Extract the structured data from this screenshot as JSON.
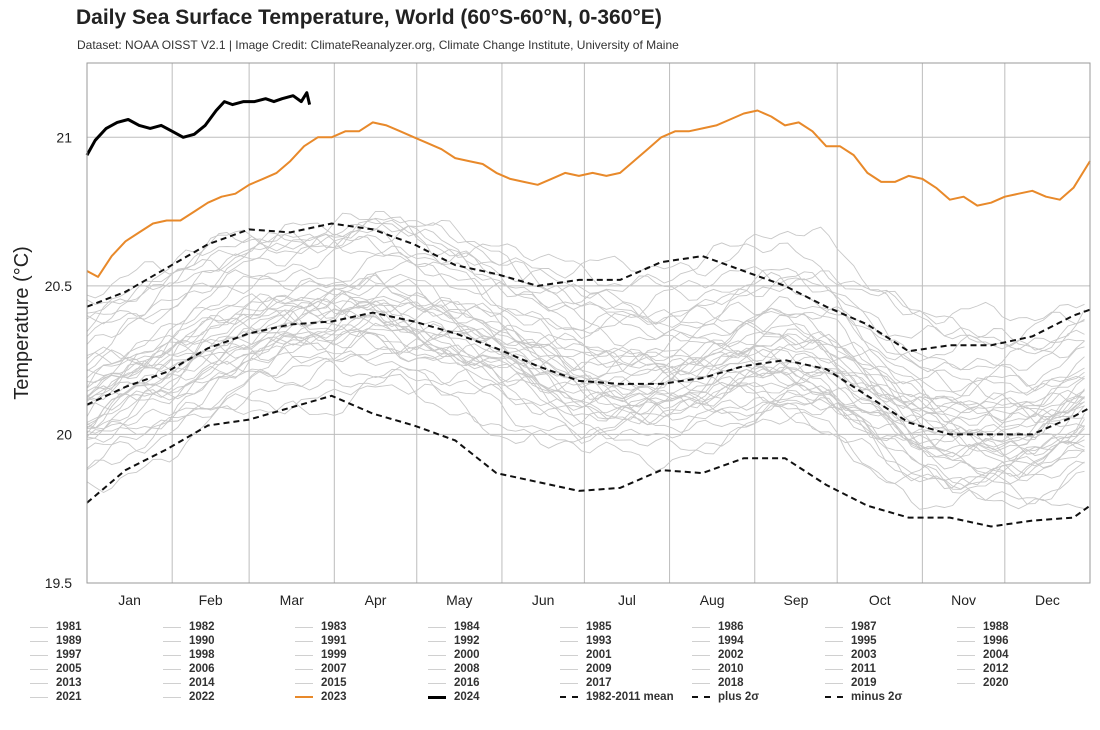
{
  "title": "Daily Sea Surface Temperature, World (60°S-60°N, 0-360°E)",
  "subtitle": "Dataset: NOAA OISST V2.1 | Image Credit: ClimateReanalyzer.org, Climate Change Institute, University of Maine",
  "colors": {
    "past_years": "#c8c8c8",
    "year_2023": "#e8892a",
    "year_2024": "#000000",
    "climatology": "#111111",
    "grid": "#bdbdbd"
  },
  "chart_data": {
    "type": "line",
    "title": "Daily Sea Surface Temperature, World (60°S-60°N, 0-360°E)",
    "xlabel": "",
    "ylabel": "Temperature (°C)",
    "x_unit": "day of year",
    "xlim": [
      1,
      366
    ],
    "ylim": [
      19.5,
      21.25
    ],
    "yticks": [
      19.5,
      20,
      20.5,
      21
    ],
    "ytick_labels": [
      "19.5",
      "20",
      "20.5",
      "21"
    ],
    "months": [
      "Jan",
      "Feb",
      "Mar",
      "Apr",
      "May",
      "Jun",
      "Jul",
      "Aug",
      "Sep",
      "Oct",
      "Nov",
      "Dec"
    ],
    "grid": true,
    "legend_position": "bottom",
    "highlight_series": [
      {
        "name": "2024",
        "style": "solid-thick-black",
        "x": [
          1,
          4,
          8,
          12,
          16,
          20,
          24,
          28,
          32,
          36,
          40,
          44,
          48,
          51,
          54,
          58,
          62,
          66,
          69,
          72,
          76,
          79,
          81,
          82
        ],
        "y": [
          20.94,
          20.99,
          21.03,
          21.05,
          21.06,
          21.04,
          21.03,
          21.04,
          21.02,
          21.0,
          21.01,
          21.04,
          21.09,
          21.12,
          21.11,
          21.12,
          21.12,
          21.13,
          21.12,
          21.13,
          21.14,
          21.12,
          21.15,
          21.11
        ]
      },
      {
        "name": "2023",
        "style": "solid-orange",
        "x": [
          1,
          5,
          10,
          15,
          20,
          25,
          30,
          35,
          40,
          45,
          50,
          55,
          60,
          65,
          70,
          75,
          80,
          85,
          90,
          95,
          100,
          105,
          110,
          115,
          120,
          125,
          130,
          135,
          140,
          145,
          150,
          155,
          160,
          165,
          170,
          175,
          180,
          185,
          190,
          195,
          200,
          205,
          210,
          215,
          220,
          225,
          230,
          235,
          240,
          245,
          250,
          255,
          260,
          265,
          270,
          275,
          280,
          285,
          290,
          295,
          300,
          305,
          310,
          315,
          320,
          325,
          330,
          335,
          340,
          345,
          350,
          355,
          360,
          366
        ],
        "y": [
          20.55,
          20.53,
          20.6,
          20.65,
          20.68,
          20.71,
          20.72,
          20.72,
          20.75,
          20.78,
          20.8,
          20.81,
          20.84,
          20.86,
          20.88,
          20.92,
          20.97,
          21.0,
          21.0,
          21.02,
          21.02,
          21.05,
          21.04,
          21.02,
          21.0,
          20.98,
          20.96,
          20.93,
          20.92,
          20.91,
          20.88,
          20.86,
          20.85,
          20.84,
          20.86,
          20.88,
          20.87,
          20.88,
          20.87,
          20.88,
          20.92,
          20.96,
          21.0,
          21.02,
          21.02,
          21.03,
          21.04,
          21.06,
          21.08,
          21.09,
          21.07,
          21.04,
          21.05,
          21.02,
          20.97,
          20.97,
          20.94,
          20.88,
          20.85,
          20.85,
          20.87,
          20.86,
          20.83,
          20.79,
          20.8,
          20.77,
          20.78,
          20.8,
          20.81,
          20.82,
          20.8,
          20.79,
          20.83,
          20.92
        ]
      }
    ],
    "climatology": {
      "x": [
        1,
        15,
        30,
        45,
        60,
        75,
        90,
        105,
        120,
        135,
        150,
        165,
        180,
        195,
        210,
        225,
        240,
        255,
        270,
        285,
        300,
        315,
        330,
        345,
        360,
        366
      ],
      "mean": [
        20.1,
        20.16,
        20.21,
        20.29,
        20.34,
        20.37,
        20.38,
        20.41,
        20.38,
        20.34,
        20.29,
        20.23,
        20.18,
        20.17,
        20.17,
        20.19,
        20.23,
        20.25,
        20.22,
        20.13,
        20.04,
        20.0,
        20.0,
        20.0,
        20.06,
        20.09
      ],
      "plus_2sigma": [
        20.43,
        20.48,
        20.56,
        20.64,
        20.69,
        20.68,
        20.71,
        20.69,
        20.64,
        20.57,
        20.54,
        20.5,
        20.52,
        20.52,
        20.58,
        20.6,
        20.55,
        20.5,
        20.43,
        20.37,
        20.28,
        20.3,
        20.3,
        20.33,
        20.4,
        20.42
      ],
      "minus_2sigma": [
        19.77,
        19.88,
        19.95,
        20.03,
        20.05,
        20.09,
        20.13,
        20.07,
        20.03,
        19.98,
        19.87,
        19.84,
        19.81,
        19.82,
        19.88,
        19.87,
        19.92,
        19.92,
        19.83,
        19.76,
        19.72,
        19.72,
        19.69,
        19.71,
        19.72,
        19.76
      ]
    },
    "background_years": {
      "names": [
        "1981",
        "1982",
        "1983",
        "1984",
        "1985",
        "1986",
        "1987",
        "1988",
        "1989",
        "1990",
        "1991",
        "1992",
        "1993",
        "1994",
        "1995",
        "1996",
        "1997",
        "1998",
        "1999",
        "2000",
        "2001",
        "2002",
        "2003",
        "2004",
        "2005",
        "2006",
        "2007",
        "2008",
        "2009",
        "2010",
        "2011",
        "2012",
        "2013",
        "2014",
        "2015",
        "2016",
        "2017",
        "2018",
        "2019",
        "2020",
        "2021",
        "2022"
      ],
      "annual_offsets": [
        -0.15,
        -0.09,
        -0.04,
        -0.22,
        -0.24,
        -0.12,
        -0.02,
        0.01,
        -0.17,
        -0.06,
        -0.03,
        -0.17,
        -0.11,
        -0.07,
        -0.02,
        -0.09,
        0.05,
        0.16,
        -0.05,
        -0.07,
        0.03,
        0.07,
        0.09,
        0.07,
        0.06,
        0.06,
        0.02,
        -0.03,
        0.08,
        0.16,
        0.0,
        0.08,
        0.1,
        0.18,
        0.28,
        0.36,
        0.27,
        0.22,
        0.31,
        0.33,
        0.25,
        0.27
      ]
    },
    "legend": {
      "years": [
        "1981",
        "1982",
        "1983",
        "1984",
        "1985",
        "1986",
        "1987",
        "1988",
        "1989",
        "1990",
        "1991",
        "1992",
        "1993",
        "1994",
        "1995",
        "1996",
        "1997",
        "1998",
        "1999",
        "2000",
        "2001",
        "2002",
        "2003",
        "2004",
        "2005",
        "2006",
        "2007",
        "2008",
        "2009",
        "2010",
        "2011",
        "2012",
        "2013",
        "2014",
        "2015",
        "2016",
        "2017",
        "2018",
        "2019",
        "2020",
        "2021",
        "2022",
        "2023",
        "2024"
      ],
      "mean_label": "1982-2011 mean",
      "plus_label": "plus 2σ",
      "minus_label": "minus 2σ"
    }
  }
}
